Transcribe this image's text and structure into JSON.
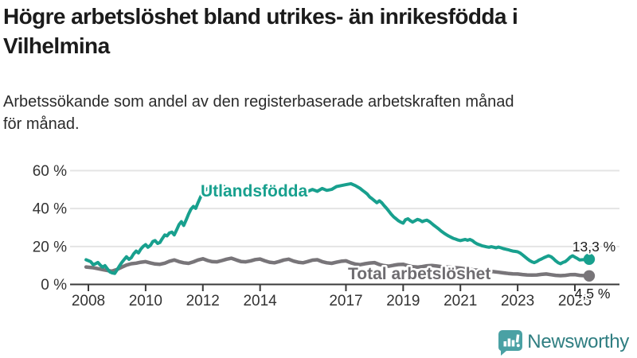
{
  "header": {
    "title_line1": "Högre arbetslöshet bland utrikes- än inrikesfödda i",
    "title_line2": "Vilhelmina",
    "subtitle_line1": "Arbetssökande som andel av den registerbaserade arbetskraften månad",
    "subtitle_line2": "för månad."
  },
  "chart_data": {
    "type": "line",
    "grid": "horizontal-only",
    "colors": {
      "gridline": "#e4e4e4",
      "axis": "#3a3a3a",
      "axis_text": "#333333"
    },
    "y_axis": {
      "tick_values": [
        0,
        20,
        40,
        60
      ],
      "tick_labels": [
        "0 %",
        "20 %",
        "40 %",
        "60 %"
      ],
      "range": [
        0,
        60
      ]
    },
    "x_axis": {
      "tick_values": [
        2008,
        2010,
        2012,
        2014,
        2017,
        2019,
        2021,
        2023,
        2025
      ],
      "tick_labels": [
        "2008",
        "2010",
        "2012",
        "2014",
        "2017",
        "2019",
        "2021",
        "2023",
        "2025"
      ],
      "range": [
        2007.4,
        2026.1
      ]
    },
    "series": [
      {
        "name": "Utlandsfödda",
        "color": "#18a08e",
        "label_color": "#18a08e",
        "end_label": "13,3 %",
        "end_value": 13.3,
        "label_anchor": {
          "x": 252,
          "y": 247
        },
        "end_label_anchor": {
          "x": 746,
          "y": 316
        },
        "points": [
          [
            2007.92,
            13.0
          ],
          [
            2008.08,
            12.0
          ],
          [
            2008.17,
            10.4
          ],
          [
            2008.25,
            10.9
          ],
          [
            2008.33,
            11.6
          ],
          [
            2008.42,
            10.1
          ],
          [
            2008.5,
            9.1
          ],
          [
            2008.58,
            9.9
          ],
          [
            2008.67,
            8.1
          ],
          [
            2008.75,
            6.6
          ],
          [
            2008.83,
            6.1
          ],
          [
            2008.92,
            5.8
          ],
          [
            2009.0,
            7.6
          ],
          [
            2009.08,
            9.6
          ],
          [
            2009.17,
            11.6
          ],
          [
            2009.25,
            13.1
          ],
          [
            2009.33,
            14.6
          ],
          [
            2009.42,
            13.2
          ],
          [
            2009.5,
            14.1
          ],
          [
            2009.58,
            16.1
          ],
          [
            2009.67,
            17.6
          ],
          [
            2009.75,
            16.6
          ],
          [
            2009.83,
            18.6
          ],
          [
            2009.92,
            20.1
          ],
          [
            2010.0,
            21.0
          ],
          [
            2010.08,
            19.6
          ],
          [
            2010.17,
            20.6
          ],
          [
            2010.25,
            22.6
          ],
          [
            2010.33,
            23.1
          ],
          [
            2010.42,
            21.6
          ],
          [
            2010.5,
            22.1
          ],
          [
            2010.58,
            24.1
          ],
          [
            2010.67,
            26.1
          ],
          [
            2010.75,
            25.6
          ],
          [
            2010.83,
            27.1
          ],
          [
            2010.92,
            27.6
          ],
          [
            2011.0,
            26.1
          ],
          [
            2011.08,
            28.6
          ],
          [
            2011.17,
            31.6
          ],
          [
            2011.25,
            33.1
          ],
          [
            2011.33,
            31.1
          ],
          [
            2011.42,
            34.1
          ],
          [
            2011.5,
            37.1
          ],
          [
            2011.58,
            39.6
          ],
          [
            2011.67,
            41.1
          ],
          [
            2011.75,
            40.1
          ],
          [
            2011.83,
            43.1
          ],
          [
            2011.92,
            46.1
          ],
          [
            2012.0,
            48.5
          ],
          [
            2012.08,
            49.6
          ],
          [
            2012.17,
            50.6
          ],
          [
            2012.25,
            49.6
          ],
          [
            2012.33,
            48.6
          ],
          [
            2012.42,
            49.1
          ],
          [
            2012.5,
            50.1
          ],
          [
            2012.58,
            49.1
          ],
          [
            2012.67,
            50.6
          ],
          [
            2012.75,
            51.6
          ],
          [
            2012.83,
            50.6
          ],
          [
            2013.0,
            49.6
          ],
          [
            2013.17,
            50.6
          ],
          [
            2013.33,
            49.1
          ],
          [
            2013.5,
            49.6
          ],
          [
            2013.67,
            50.6
          ],
          [
            2013.83,
            49.6
          ],
          [
            2014.0,
            51.1
          ],
          [
            2014.17,
            50.1
          ],
          [
            2014.33,
            48.6
          ],
          [
            2014.5,
            48.1
          ],
          [
            2014.67,
            49.6
          ],
          [
            2014.83,
            50.6
          ],
          [
            2015.0,
            51.1
          ],
          [
            2015.17,
            50.1
          ],
          [
            2015.33,
            48.6
          ],
          [
            2015.5,
            48.1
          ],
          [
            2015.67,
            49.1
          ],
          [
            2015.83,
            50.1
          ],
          [
            2016.0,
            49.1
          ],
          [
            2016.17,
            50.6
          ],
          [
            2016.33,
            49.6
          ],
          [
            2016.5,
            50.1
          ],
          [
            2016.67,
            51.6
          ],
          [
            2016.83,
            52.1
          ],
          [
            2017.0,
            52.6
          ],
          [
            2017.17,
            53.1
          ],
          [
            2017.33,
            52.1
          ],
          [
            2017.5,
            50.6
          ],
          [
            2017.58,
            49.6
          ],
          [
            2017.67,
            48.6
          ],
          [
            2017.75,
            47.6
          ],
          [
            2017.83,
            46.1
          ],
          [
            2017.92,
            45.1
          ],
          [
            2018.0,
            44.1
          ],
          [
            2018.08,
            43.1
          ],
          [
            2018.17,
            44.1
          ],
          [
            2018.25,
            43.1
          ],
          [
            2018.33,
            41.6
          ],
          [
            2018.42,
            40.1
          ],
          [
            2018.5,
            38.6
          ],
          [
            2018.58,
            37.1
          ],
          [
            2018.67,
            35.6
          ],
          [
            2018.75,
            34.6
          ],
          [
            2018.83,
            33.6
          ],
          [
            2018.92,
            32.8
          ],
          [
            2019.0,
            32.3
          ],
          [
            2019.08,
            34.1
          ],
          [
            2019.17,
            34.6
          ],
          [
            2019.25,
            33.6
          ],
          [
            2019.33,
            32.9
          ],
          [
            2019.42,
            33.6
          ],
          [
            2019.5,
            34.3
          ],
          [
            2019.58,
            33.9
          ],
          [
            2019.67,
            33.1
          ],
          [
            2019.75,
            33.6
          ],
          [
            2019.83,
            33.9
          ],
          [
            2019.92,
            33.1
          ],
          [
            2020.0,
            32.1
          ],
          [
            2020.08,
            31.1
          ],
          [
            2020.17,
            30.1
          ],
          [
            2020.25,
            29.1
          ],
          [
            2020.33,
            28.1
          ],
          [
            2020.42,
            27.1
          ],
          [
            2020.5,
            26.3
          ],
          [
            2020.58,
            25.6
          ],
          [
            2020.67,
            24.9
          ],
          [
            2020.75,
            24.3
          ],
          [
            2020.83,
            23.9
          ],
          [
            2020.92,
            23.4
          ],
          [
            2021.0,
            23.1
          ],
          [
            2021.08,
            23.4
          ],
          [
            2021.17,
            23.7
          ],
          [
            2021.25,
            23.3
          ],
          [
            2021.33,
            23.7
          ],
          [
            2021.42,
            23.1
          ],
          [
            2021.5,
            22.1
          ],
          [
            2021.58,
            21.4
          ],
          [
            2021.67,
            20.9
          ],
          [
            2021.75,
            20.4
          ],
          [
            2021.83,
            20.1
          ],
          [
            2021.92,
            19.8
          ],
          [
            2022.0,
            19.6
          ],
          [
            2022.08,
            19.9
          ],
          [
            2022.17,
            19.6
          ],
          [
            2022.25,
            19.3
          ],
          [
            2022.33,
            19.7
          ],
          [
            2022.42,
            19.3
          ],
          [
            2022.5,
            18.9
          ],
          [
            2022.58,
            18.6
          ],
          [
            2022.67,
            18.3
          ],
          [
            2022.75,
            17.9
          ],
          [
            2022.83,
            17.6
          ],
          [
            2022.92,
            17.4
          ],
          [
            2023.0,
            17.2
          ],
          [
            2023.08,
            16.6
          ],
          [
            2023.17,
            15.6
          ],
          [
            2023.25,
            14.6
          ],
          [
            2023.33,
            13.6
          ],
          [
            2023.42,
            12.6
          ],
          [
            2023.5,
            11.9
          ],
          [
            2023.58,
            11.5
          ],
          [
            2023.67,
            12.1
          ],
          [
            2023.75,
            12.9
          ],
          [
            2023.83,
            13.4
          ],
          [
            2023.92,
            14.1
          ],
          [
            2024.0,
            14.6
          ],
          [
            2024.08,
            15.1
          ],
          [
            2024.17,
            14.6
          ],
          [
            2024.25,
            13.6
          ],
          [
            2024.33,
            12.4
          ],
          [
            2024.42,
            11.4
          ],
          [
            2024.5,
            10.9
          ],
          [
            2024.58,
            11.6
          ],
          [
            2024.67,
            12.1
          ],
          [
            2024.75,
            13.1
          ],
          [
            2024.83,
            14.3
          ],
          [
            2024.92,
            15.1
          ],
          [
            2025.0,
            14.4
          ],
          [
            2025.08,
            13.7
          ],
          [
            2025.17,
            12.9
          ],
          [
            2025.25,
            13.0
          ],
          [
            2025.33,
            13.1
          ],
          [
            2025.5,
            13.3
          ]
        ]
      },
      {
        "name": "Total arbetslöshet",
        "color": "#787579",
        "label_color": "#6e6c70",
        "end_label": "4,5 %",
        "end_value": 4.5,
        "label_anchor": {
          "x": 437,
          "y": 351
        },
        "end_label_anchor": {
          "x": 744,
          "y": 375
        },
        "points": [
          [
            2007.92,
            9.2
          ],
          [
            2008.17,
            8.8
          ],
          [
            2008.33,
            8.3
          ],
          [
            2008.5,
            7.8
          ],
          [
            2008.67,
            7.3
          ],
          [
            2008.83,
            7.0
          ],
          [
            2009.0,
            7.9
          ],
          [
            2009.17,
            9.1
          ],
          [
            2009.33,
            10.2
          ],
          [
            2009.5,
            10.9
          ],
          [
            2009.67,
            11.2
          ],
          [
            2009.83,
            11.7
          ],
          [
            2010.0,
            12.0
          ],
          [
            2010.17,
            11.3
          ],
          [
            2010.33,
            10.8
          ],
          [
            2010.5,
            10.6
          ],
          [
            2010.67,
            11.2
          ],
          [
            2010.83,
            12.2
          ],
          [
            2011.0,
            12.9
          ],
          [
            2011.17,
            12.0
          ],
          [
            2011.33,
            11.4
          ],
          [
            2011.5,
            11.1
          ],
          [
            2011.67,
            11.9
          ],
          [
            2011.83,
            12.9
          ],
          [
            2012.0,
            13.5
          ],
          [
            2012.17,
            12.6
          ],
          [
            2012.33,
            12.0
          ],
          [
            2012.5,
            11.9
          ],
          [
            2012.67,
            12.6
          ],
          [
            2012.83,
            13.3
          ],
          [
            2013.0,
            13.8
          ],
          [
            2013.17,
            12.9
          ],
          [
            2013.33,
            12.1
          ],
          [
            2013.5,
            11.9
          ],
          [
            2013.67,
            12.4
          ],
          [
            2013.83,
            13.1
          ],
          [
            2014.0,
            13.4
          ],
          [
            2014.17,
            12.4
          ],
          [
            2014.33,
            11.7
          ],
          [
            2014.5,
            11.4
          ],
          [
            2014.67,
            12.1
          ],
          [
            2014.83,
            12.9
          ],
          [
            2015.0,
            13.3
          ],
          [
            2015.17,
            12.3
          ],
          [
            2015.33,
            11.7
          ],
          [
            2015.5,
            11.4
          ],
          [
            2015.67,
            12.1
          ],
          [
            2015.83,
            12.8
          ],
          [
            2016.0,
            13.0
          ],
          [
            2016.17,
            12.0
          ],
          [
            2016.33,
            11.4
          ],
          [
            2016.5,
            11.1
          ],
          [
            2016.67,
            11.7
          ],
          [
            2016.83,
            12.2
          ],
          [
            2017.0,
            12.4
          ],
          [
            2017.17,
            11.4
          ],
          [
            2017.33,
            10.7
          ],
          [
            2017.5,
            10.4
          ],
          [
            2017.67,
            10.9
          ],
          [
            2017.83,
            11.3
          ],
          [
            2018.0,
            11.5
          ],
          [
            2018.17,
            10.5
          ],
          [
            2018.33,
            9.9
          ],
          [
            2018.5,
            9.6
          ],
          [
            2018.67,
            10.1
          ],
          [
            2018.83,
            10.5
          ],
          [
            2019.0,
            10.6
          ],
          [
            2019.17,
            9.9
          ],
          [
            2019.33,
            9.3
          ],
          [
            2019.5,
            9.1
          ],
          [
            2019.67,
            9.4
          ],
          [
            2019.83,
            9.8
          ],
          [
            2020.0,
            10.0
          ],
          [
            2020.17,
            9.7
          ],
          [
            2020.33,
            9.4
          ],
          [
            2020.5,
            9.2
          ],
          [
            2020.67,
            9.0
          ],
          [
            2020.83,
            8.8
          ],
          [
            2021.0,
            8.6
          ],
          [
            2021.17,
            8.2
          ],
          [
            2021.33,
            7.9
          ],
          [
            2021.5,
            7.6
          ],
          [
            2021.67,
            7.4
          ],
          [
            2021.83,
            7.2
          ],
          [
            2022.0,
            7.0
          ],
          [
            2022.17,
            6.7
          ],
          [
            2022.33,
            6.4
          ],
          [
            2022.5,
            6.1
          ],
          [
            2022.67,
            5.8
          ],
          [
            2022.83,
            5.6
          ],
          [
            2023.0,
            5.5
          ],
          [
            2023.17,
            5.2
          ],
          [
            2023.33,
            5.0
          ],
          [
            2023.5,
            4.9
          ],
          [
            2023.67,
            5.0
          ],
          [
            2023.83,
            5.3
          ],
          [
            2024.0,
            5.5
          ],
          [
            2024.17,
            5.1
          ],
          [
            2024.33,
            4.8
          ],
          [
            2024.5,
            4.6
          ],
          [
            2024.67,
            4.8
          ],
          [
            2024.83,
            5.1
          ],
          [
            2025.0,
            5.2
          ],
          [
            2025.17,
            4.8
          ],
          [
            2025.33,
            4.6
          ],
          [
            2025.5,
            4.5
          ]
        ]
      }
    ]
  },
  "footer": {
    "brand": "Newsworthy",
    "brand_text_color": "#2f7e81",
    "icon_color": "#4aa1a4",
    "icon_name": "newsworthy-chart-bubble-icon"
  }
}
